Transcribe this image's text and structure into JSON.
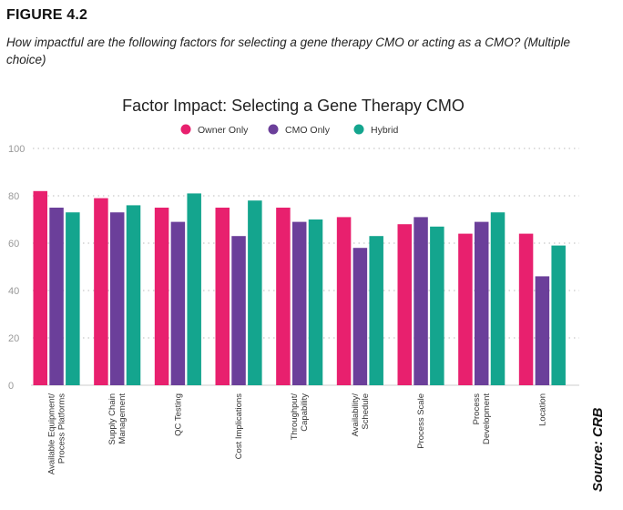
{
  "figure_label": "FIGURE 4.2",
  "question": "How impactful are the following factors for selecting a gene therapy CMO or acting as a CMO? (Multiple choice)",
  "source": "Source: CRB",
  "colors": {
    "owner": "#e8206e",
    "cmo": "#6b3f9a",
    "hybrid": "#14a58e",
    "grid": "#bbbbbb",
    "axis_text": "#999999"
  },
  "chart_data": {
    "type": "bar",
    "title": "Factor Impact: Selecting a Gene Therapy CMO",
    "xlabel": "",
    "ylabel": "",
    "ylim": [
      0,
      100
    ],
    "yticks": [
      0,
      20,
      40,
      60,
      80,
      100
    ],
    "grid": true,
    "legend_position": "top-center",
    "categories": [
      "Available Equipment/\nProcess Platforms",
      "Supply Chain\nManagement",
      "QC Testing",
      "Cost Implications",
      "Throughput/\nCapability",
      "Availability/\nSchedule",
      "Process Scale",
      "Process\nDevelopment",
      "Location"
    ],
    "series": [
      {
        "name": "Owner Only",
        "color": "#e8206e",
        "values": [
          82,
          79,
          75,
          75,
          75,
          71,
          68,
          64,
          64
        ]
      },
      {
        "name": "CMO Only",
        "color": "#6b3f9a",
        "values": [
          75,
          73,
          69,
          63,
          69,
          58,
          71,
          69,
          46
        ]
      },
      {
        "name": "Hybrid",
        "color": "#14a58e",
        "values": [
          73,
          76,
          81,
          78,
          70,
          63,
          67,
          73,
          59
        ]
      }
    ]
  }
}
